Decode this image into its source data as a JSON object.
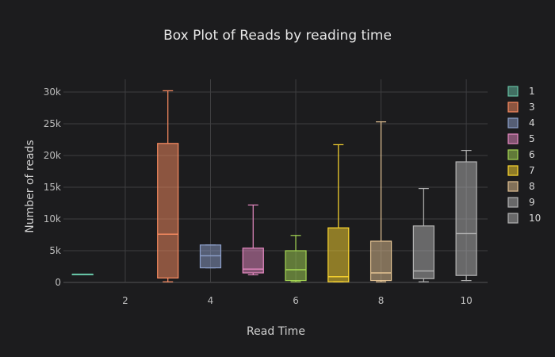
{
  "chart_data": {
    "type": "box",
    "title": "Box Plot of Reads by reading time",
    "xlabel": "Read Time",
    "ylabel": "Number of reads",
    "xlim": [
      0.55,
      10.5
    ],
    "ylim": [
      0,
      32000
    ],
    "x_ticks": [
      2,
      4,
      6,
      8,
      10
    ],
    "y_ticks": [
      {
        "value": 0,
        "label": "0"
      },
      {
        "value": 5000,
        "label": "5k"
      },
      {
        "value": 10000,
        "label": "10k"
      },
      {
        "value": 15000,
        "label": "15k"
      },
      {
        "value": 20000,
        "label": "20k"
      },
      {
        "value": 25000,
        "label": "25k"
      },
      {
        "value": 30000,
        "label": "30k"
      }
    ],
    "grid": true,
    "legend_position": "right",
    "series": [
      {
        "name": "1",
        "x": 1,
        "color": "#66c2a5",
        "min": 1300,
        "q1": 1300,
        "median": 1300,
        "q3": 1300,
        "max": 1300
      },
      {
        "name": "3",
        "x": 3,
        "color": "#fc8d62",
        "min": 100,
        "q1": 700,
        "median": 7600,
        "q3": 21900,
        "max": 30200
      },
      {
        "name": "4",
        "x": 4,
        "color": "#8da0cb",
        "min": 2300,
        "q1": 2300,
        "median": 4200,
        "q3": 5900,
        "max": 5900
      },
      {
        "name": "5",
        "x": 5,
        "color": "#e78ac3",
        "min": 1200,
        "q1": 1500,
        "median": 2100,
        "q3": 5400,
        "max": 12200
      },
      {
        "name": "6",
        "x": 6,
        "color": "#a6d854",
        "min": 100,
        "q1": 300,
        "median": 2000,
        "q3": 5000,
        "max": 7400
      },
      {
        "name": "7",
        "x": 7,
        "color": "#ffd92f",
        "min": 100,
        "q1": 100,
        "median": 900,
        "q3": 8600,
        "max": 21700
      },
      {
        "name": "8",
        "x": 8,
        "color": "#e5c494",
        "min": 100,
        "q1": 300,
        "median": 1500,
        "q3": 6500,
        "max": 25300
      },
      {
        "name": "9",
        "x": 9,
        "color": "#b3b3b3",
        "min": 100,
        "q1": 600,
        "median": 1800,
        "q3": 8900,
        "max": 14800
      },
      {
        "name": "10",
        "x": 10,
        "color": "#b3b3b3",
        "min": 300,
        "q1": 1100,
        "median": 7700,
        "q3": 19000,
        "max": 20800
      }
    ]
  }
}
